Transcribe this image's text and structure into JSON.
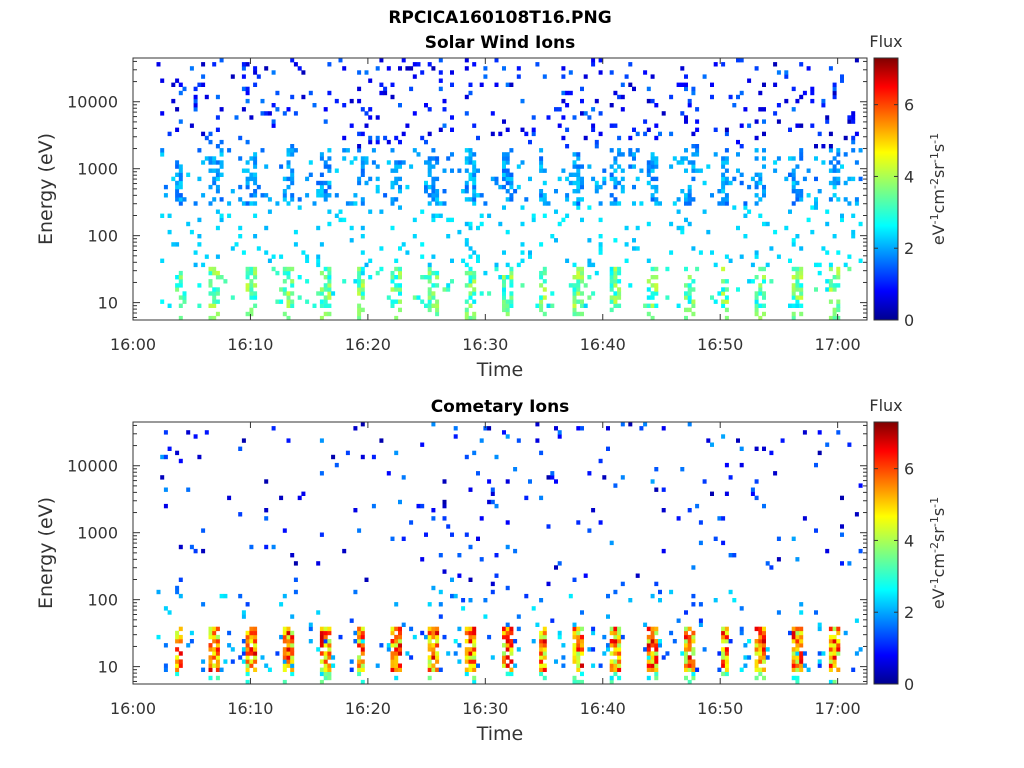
{
  "figure": {
    "suptitle": "RPCICA160108T16.PNG"
  },
  "colorbar": {
    "label_top": "Flux",
    "unit_base": "eV",
    "unit_parts": [
      "eV",
      "-1",
      "cm",
      "-2",
      "sr",
      "-1",
      "s",
      "-1"
    ],
    "ticks": [
      "0",
      "2",
      "4",
      "6"
    ],
    "range": [
      0,
      7.3
    ],
    "colormap": "jet",
    "colors": {
      "low": "#00008f",
      "mid": "#7fff7f",
      "high": "#7f0000"
    }
  },
  "chart_data": [
    {
      "type": "heatmap",
      "title": "Solar Wind Ions",
      "xlabel": "Time",
      "ylabel": "Energy (eV)",
      "x_ticks": [
        "16:00",
        "16:10",
        "16:20",
        "16:30",
        "16:40",
        "16:50",
        "17:00"
      ],
      "x_range_minutes": [
        0,
        62.5
      ],
      "y_scale": "log",
      "y_ticks": [
        "10",
        "100",
        "1000",
        "10000"
      ],
      "y_range": [
        5.5,
        45000
      ],
      "flux_range": [
        0,
        7.3
      ],
      "dominant_features": [
        {
          "energy_range": [
            300,
            2000
          ],
          "flux": 2.3,
          "description_level": "cyan bursts"
        },
        {
          "energy_range": [
            10,
            40
          ],
          "flux": 3.5,
          "description_level": "green low energy bands"
        },
        {
          "energy_range": [
            2000,
            30000
          ],
          "flux": 1.5,
          "description_level": "sparse blue"
        }
      ]
    },
    {
      "type": "heatmap",
      "title": "Cometary Ions",
      "xlabel": "Time",
      "ylabel": "Energy (eV)",
      "x_ticks": [
        "16:00",
        "16:10",
        "16:20",
        "16:30",
        "16:40",
        "16:50",
        "17:00"
      ],
      "x_range_minutes": [
        0,
        62.5
      ],
      "y_scale": "log",
      "y_ticks": [
        "10",
        "100",
        "1000",
        "10000"
      ],
      "y_range": [
        5.5,
        45000
      ],
      "flux_range": [
        0,
        7.3
      ],
      "dominant_features": [
        {
          "energy_range": [
            10,
            35
          ],
          "flux": 5.5,
          "description_level": "yellow-red periodic bursts"
        },
        {
          "energy_range": [
            40,
            3000
          ],
          "flux": 1.0,
          "description_level": "sparse blue / cyan"
        }
      ]
    }
  ]
}
